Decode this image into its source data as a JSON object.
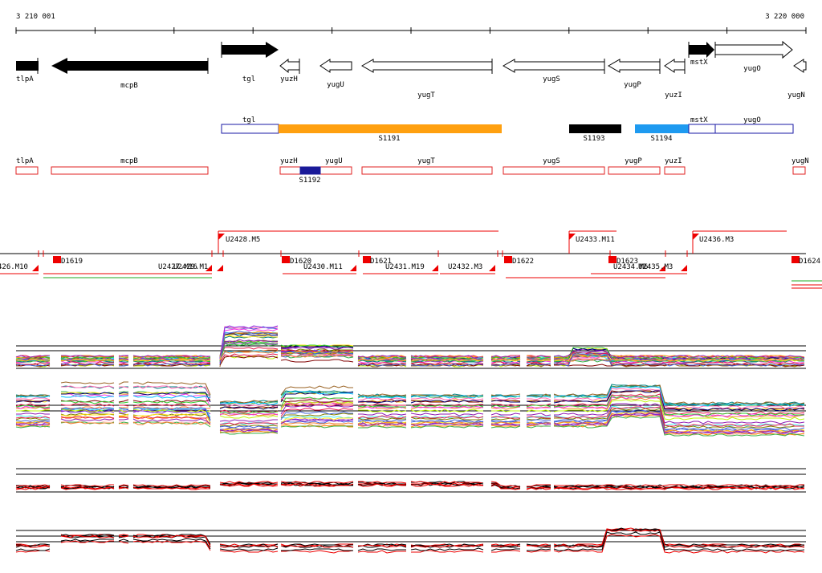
{
  "coordinates": {
    "start": "3 210 001",
    "end": "3 220 000"
  },
  "genes": [
    {
      "name": "tlpA",
      "color": "black",
      "dir": "right"
    },
    {
      "name": "mcpB",
      "color": "black",
      "dir": "left"
    },
    {
      "name": "tgl",
      "color": "black",
      "dir": "right"
    },
    {
      "name": "yuzH",
      "color": "white",
      "dir": "left"
    },
    {
      "name": "yugU",
      "color": "white",
      "dir": "left"
    },
    {
      "name": "yugT",
      "color": "white",
      "dir": "left"
    },
    {
      "name": "yugS",
      "color": "white",
      "dir": "left"
    },
    {
      "name": "yugP",
      "color": "white",
      "dir": "left"
    },
    {
      "name": "yuzI",
      "color": "white",
      "dir": "left"
    },
    {
      "name": "mstX",
      "color": "black",
      "dir": "right"
    },
    {
      "name": "yugO",
      "color": "white",
      "dir": "right"
    },
    {
      "name": "yugN",
      "color": "white",
      "dir": "left"
    }
  ],
  "transcription_track": {
    "boxes": [
      {
        "label": "tgl",
        "color": "#ffffff",
        "border": "#1a1aa6"
      },
      {
        "label": "S1191",
        "color": "#ffa010",
        "border": "#ffa010"
      },
      {
        "label": "S1193",
        "color": "#000000",
        "border": "#000000"
      },
      {
        "label": "S1194",
        "color": "#1e9af0",
        "border": "#1e9af0"
      },
      {
        "label": "mstX",
        "color": "#ffffff",
        "border": "#1a1aa6"
      },
      {
        "label": "yugO",
        "color": "#ffffff",
        "border": "#1a1aa6"
      }
    ]
  },
  "gene_outline_track": {
    "boxes": [
      {
        "label": "tlpA"
      },
      {
        "label": "mcpB"
      },
      {
        "label": "yuzH"
      },
      {
        "label": "yugU"
      },
      {
        "label": "yugT"
      },
      {
        "label": "yugS"
      },
      {
        "label": "yugP"
      },
      {
        "label": "yuzI"
      },
      {
        "label": "yugN"
      }
    ],
    "highlight": {
      "label": "S1192",
      "color": "#1a1a99"
    }
  },
  "segments": {
    "upper": [
      {
        "label": "U2428.M5"
      },
      {
        "label": "U2433.M11"
      },
      {
        "label": "U2436.M3"
      }
    ],
    "lower": [
      {
        "label": "D1619"
      },
      {
        "label": "D1620"
      },
      {
        "label": "D1621"
      },
      {
        "label": "D1622"
      },
      {
        "label": "D1623"
      },
      {
        "label": "D1624"
      },
      {
        "label": "426.M10"
      },
      {
        "label": "U2427.M16"
      },
      {
        "label": "U2429.M1"
      },
      {
        "label": "U2430.M11"
      },
      {
        "label": "U2431.M19"
      },
      {
        "label": "U2432.M3"
      },
      {
        "label": "U2434.M6"
      },
      {
        "label": "U2435.M3"
      }
    ]
  },
  "colors": {
    "segment_line": "#ff0000",
    "axis": "#000000"
  }
}
